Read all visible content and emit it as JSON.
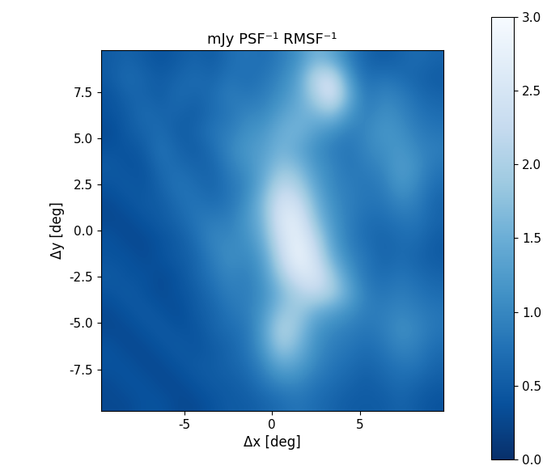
{
  "chart_data": {
    "type": "heatmap",
    "title": "mJy PSF⁻¹ RMSF⁻¹",
    "x_label": "Δx [deg]",
    "y_label": "Δy [deg]",
    "xlim": [
      -9.75,
      9.75
    ],
    "ylim": [
      -9.75,
      9.75
    ],
    "xticks": [
      -5,
      0,
      5
    ],
    "yticks": [
      -7.5,
      -5.0,
      -2.5,
      0.0,
      2.5,
      5.0,
      7.5
    ],
    "colorbar": {
      "range": [
        0.0,
        3.0
      ],
      "ticks": [
        0.0,
        0.5,
        1.0,
        1.5,
        2.0,
        2.5,
        3.0
      ]
    },
    "cells": [
      [
        0.5,
        0.6,
        0.5,
        0.4,
        0.5,
        0.6,
        0.5,
        0.7,
        0.8,
        0.7,
        0.9,
        1.1,
        1.6,
        1.4,
        0.9,
        0.6,
        0.5,
        0.6,
        0.7,
        0.6
      ],
      [
        0.5,
        0.7,
        0.6,
        0.5,
        0.6,
        0.7,
        0.6,
        0.8,
        0.7,
        0.8,
        1.0,
        1.3,
        2.2,
        2.4,
        1.2,
        0.7,
        0.8,
        0.7,
        0.6,
        0.5
      ],
      [
        0.4,
        0.6,
        0.6,
        0.5,
        0.7,
        0.6,
        0.7,
        0.9,
        0.8,
        0.9,
        1.1,
        1.4,
        2.0,
        2.6,
        1.5,
        0.8,
        1.0,
        0.9,
        0.7,
        0.6
      ],
      [
        0.4,
        0.5,
        0.7,
        0.6,
        0.6,
        0.5,
        0.7,
        0.8,
        1.0,
        1.0,
        1.3,
        1.5,
        1.6,
        1.8,
        1.2,
        0.9,
        1.1,
        1.0,
        0.8,
        0.7
      ],
      [
        0.3,
        0.5,
        0.6,
        0.7,
        0.5,
        0.6,
        0.8,
        0.9,
        1.1,
        1.2,
        1.5,
        1.6,
        1.3,
        1.1,
        0.9,
        1.0,
        1.2,
        1.1,
        0.9,
        0.8
      ],
      [
        0.4,
        0.4,
        0.5,
        0.8,
        0.6,
        0.5,
        0.7,
        1.0,
        1.2,
        1.3,
        1.6,
        1.4,
        1.1,
        0.9,
        0.8,
        1.0,
        1.1,
        1.2,
        1.0,
        0.9
      ],
      [
        0.5,
        0.4,
        0.4,
        0.7,
        0.7,
        0.6,
        0.6,
        0.9,
        1.1,
        1.4,
        1.8,
        1.7,
        1.2,
        1.0,
        0.8,
        0.9,
        1.0,
        1.3,
        1.1,
        0.8
      ],
      [
        0.4,
        0.5,
        0.4,
        0.6,
        0.8,
        0.7,
        0.6,
        0.8,
        1.0,
        1.5,
        2.2,
        2.0,
        1.4,
        1.0,
        0.9,
        0.8,
        0.9,
        1.2,
        1.0,
        0.7
      ],
      [
        0.3,
        0.4,
        0.5,
        0.5,
        0.7,
        0.8,
        0.7,
        0.8,
        1.1,
        1.7,
        2.5,
        2.4,
        1.6,
        1.1,
        0.9,
        0.8,
        0.8,
        1.0,
        0.9,
        0.6
      ],
      [
        0.3,
        0.3,
        0.4,
        0.5,
        0.6,
        0.8,
        0.9,
        0.9,
        1.2,
        1.6,
        2.6,
        2.7,
        1.8,
        1.2,
        0.9,
        0.7,
        0.7,
        0.8,
        0.8,
        0.6
      ],
      [
        0.4,
        0.3,
        0.3,
        0.4,
        0.5,
        0.7,
        1.0,
        1.0,
        1.1,
        1.5,
        2.4,
        2.8,
        2.2,
        1.3,
        0.9,
        0.7,
        0.6,
        0.7,
        0.7,
        0.5
      ],
      [
        0.4,
        0.4,
        0.3,
        0.4,
        0.5,
        0.6,
        0.9,
        1.1,
        1.0,
        1.3,
        2.2,
        2.9,
        2.4,
        1.5,
        1.0,
        0.8,
        0.6,
        0.7,
        0.6,
        0.5
      ],
      [
        0.5,
        0.4,
        0.4,
        0.3,
        0.4,
        0.6,
        0.8,
        1.0,
        0.9,
        1.2,
        1.9,
        2.5,
        2.6,
        1.9,
        1.2,
        0.8,
        0.7,
        0.8,
        0.7,
        0.6
      ],
      [
        0.4,
        0.5,
        0.4,
        0.3,
        0.4,
        0.5,
        0.7,
        0.9,
        0.9,
        1.1,
        1.6,
        2.0,
        2.2,
        2.0,
        1.4,
        0.9,
        0.8,
        0.9,
        0.8,
        0.7
      ],
      [
        0.3,
        0.4,
        0.5,
        0.4,
        0.3,
        0.5,
        0.6,
        0.8,
        0.9,
        1.2,
        1.8,
        1.9,
        1.5,
        1.3,
        1.1,
        0.9,
        0.9,
        1.0,
        0.9,
        0.8
      ],
      [
        0.3,
        0.3,
        0.4,
        0.5,
        0.4,
        0.4,
        0.6,
        0.7,
        0.8,
        1.3,
        2.1,
        1.8,
        1.2,
        1.0,
        0.9,
        0.8,
        0.9,
        1.1,
        1.0,
        0.8
      ],
      [
        0.4,
        0.3,
        0.3,
        0.4,
        0.5,
        0.4,
        0.5,
        0.6,
        0.8,
        1.2,
        1.9,
        1.6,
        1.1,
        0.9,
        0.8,
        0.7,
        0.8,
        1.0,
        0.9,
        0.7
      ],
      [
        0.4,
        0.4,
        0.3,
        0.3,
        0.4,
        0.5,
        0.5,
        0.6,
        0.7,
        1.0,
        1.4,
        1.3,
        1.0,
        0.8,
        0.7,
        0.6,
        0.7,
        0.8,
        0.8,
        0.6
      ],
      [
        0.3,
        0.4,
        0.4,
        0.3,
        0.3,
        0.4,
        0.5,
        0.5,
        0.6,
        0.8,
        1.0,
        1.0,
        0.8,
        0.7,
        0.6,
        0.5,
        0.6,
        0.7,
        0.6,
        0.5
      ],
      [
        0.3,
        0.3,
        0.4,
        0.4,
        0.3,
        0.3,
        0.4,
        0.5,
        0.5,
        0.6,
        0.7,
        0.8,
        0.7,
        0.6,
        0.5,
        0.5,
        0.5,
        0.6,
        0.5,
        0.4
      ]
    ]
  }
}
